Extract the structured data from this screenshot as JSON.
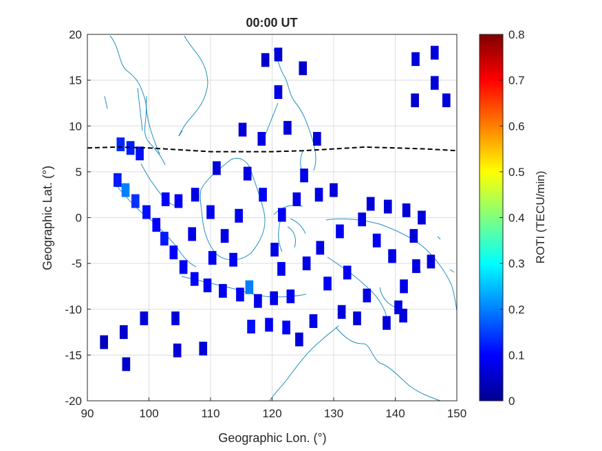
{
  "chart_data": {
    "type": "heatmap",
    "title": "00:00 UT",
    "xlabel": "Geographic Lon. (°)",
    "ylabel": "Geographic Lat. (°)",
    "xlim": [
      90,
      150
    ],
    "ylim": [
      -20,
      20
    ],
    "xticks": [
      90,
      100,
      110,
      120,
      130,
      140,
      150
    ],
    "yticks": [
      20,
      15,
      10,
      5,
      0,
      -5,
      -10,
      -15,
      -20
    ],
    "grid": true,
    "colorbar": {
      "label": "ROTI (TECU/min)",
      "range": [
        0,
        0.8
      ],
      "ticks": [
        0,
        0.1,
        0.2,
        0.3,
        0.4,
        0.5,
        0.6,
        0.7,
        0.8
      ],
      "colormap": "jet"
    },
    "magnetic_equator": {
      "style": "dashed",
      "color": "#000000",
      "lon": [
        90,
        95,
        100,
        105,
        110,
        115,
        120,
        125,
        130,
        135,
        140,
        145,
        150
      ],
      "lat": [
        7.6,
        7.7,
        7.6,
        7.4,
        7.2,
        7.2,
        7.2,
        7.3,
        7.5,
        7.7,
        7.6,
        7.5,
        7.3
      ]
    },
    "cells": [
      {
        "lon": 92.7,
        "lat": -13.6,
        "roti": 0.05
      },
      {
        "lon": 95.9,
        "lat": -12.5,
        "roti": 0.06
      },
      {
        "lon": 96.3,
        "lat": -16.0,
        "roti": 0.06
      },
      {
        "lon": 99.2,
        "lat": -11.0,
        "roti": 0.07
      },
      {
        "lon": 104.3,
        "lat": -11.0,
        "roti": 0.07
      },
      {
        "lon": 104.6,
        "lat": -14.5,
        "roti": 0.07
      },
      {
        "lon": 108.8,
        "lat": -14.3,
        "roti": 0.07
      },
      {
        "lon": 118.9,
        "lat": 17.2,
        "roti": 0.06
      },
      {
        "lon": 121.0,
        "lat": 17.8,
        "roti": 0.07
      },
      {
        "lon": 125.0,
        "lat": 16.3,
        "roti": 0.06
      },
      {
        "lon": 121.0,
        "lat": 13.7,
        "roti": 0.08
      },
      {
        "lon": 115.2,
        "lat": 9.6,
        "roti": 0.07
      },
      {
        "lon": 118.3,
        "lat": 8.6,
        "roti": 0.08
      },
      {
        "lon": 122.5,
        "lat": 9.8,
        "roti": 0.07
      },
      {
        "lon": 127.3,
        "lat": 8.6,
        "roti": 0.07
      },
      {
        "lon": 143.3,
        "lat": 17.3,
        "roti": 0.07
      },
      {
        "lon": 146.4,
        "lat": 18.0,
        "roti": 0.07
      },
      {
        "lon": 146.4,
        "lat": 14.7,
        "roti": 0.07
      },
      {
        "lon": 143.2,
        "lat": 12.8,
        "roti": 0.06
      },
      {
        "lon": 148.3,
        "lat": 12.8,
        "roti": 0.07
      },
      {
        "lon": 95.4,
        "lat": 8.0,
        "roti": 0.13
      },
      {
        "lon": 97.0,
        "lat": 7.6,
        "roti": 0.12
      },
      {
        "lon": 98.5,
        "lat": 7.0,
        "roti": 0.11
      },
      {
        "lon": 94.9,
        "lat": 4.1,
        "roti": 0.12
      },
      {
        "lon": 96.2,
        "lat": 3.0,
        "roti": 0.2
      },
      {
        "lon": 97.8,
        "lat": 1.8,
        "roti": 0.14
      },
      {
        "lon": 99.6,
        "lat": 0.6,
        "roti": 0.11
      },
      {
        "lon": 101.2,
        "lat": -0.8,
        "roti": 0.1
      },
      {
        "lon": 102.5,
        "lat": -2.3,
        "roti": 0.12
      },
      {
        "lon": 104.0,
        "lat": -3.8,
        "roti": 0.1
      },
      {
        "lon": 105.6,
        "lat": -5.4,
        "roti": 0.09
      },
      {
        "lon": 107.4,
        "lat": -6.7,
        "roti": 0.1
      },
      {
        "lon": 109.5,
        "lat": -7.4,
        "roti": 0.1
      },
      {
        "lon": 112.0,
        "lat": -8.0,
        "roti": 0.09
      },
      {
        "lon": 114.8,
        "lat": -8.4,
        "roti": 0.1
      },
      {
        "lon": 116.3,
        "lat": -7.6,
        "roti": 0.2
      },
      {
        "lon": 117.7,
        "lat": -9.1,
        "roti": 0.08
      },
      {
        "lon": 120.3,
        "lat": -8.8,
        "roti": 0.08
      },
      {
        "lon": 123.0,
        "lat": -8.6,
        "roti": 0.09
      },
      {
        "lon": 116.6,
        "lat": -11.9,
        "roti": 0.11
      },
      {
        "lon": 119.5,
        "lat": -11.7,
        "roti": 0.09
      },
      {
        "lon": 122.3,
        "lat": -12.0,
        "roti": 0.1
      },
      {
        "lon": 124.4,
        "lat": -13.3,
        "roti": 0.07
      },
      {
        "lon": 126.7,
        "lat": -11.3,
        "roti": 0.08
      },
      {
        "lon": 111.0,
        "lat": 5.4,
        "roti": 0.07
      },
      {
        "lon": 116.0,
        "lat": 4.8,
        "roti": 0.08
      },
      {
        "lon": 118.5,
        "lat": 2.5,
        "roti": 0.09
      },
      {
        "lon": 114.6,
        "lat": 0.2,
        "roti": 0.09
      },
      {
        "lon": 112.3,
        "lat": -2.0,
        "roti": 0.08
      },
      {
        "lon": 110.0,
        "lat": 0.6,
        "roti": 0.09
      },
      {
        "lon": 107.5,
        "lat": 2.5,
        "roti": 0.08
      },
      {
        "lon": 107.0,
        "lat": -1.8,
        "roti": 0.08
      },
      {
        "lon": 121.6,
        "lat": 0.3,
        "roti": 0.09
      },
      {
        "lon": 124.0,
        "lat": 2.0,
        "roti": 0.08
      },
      {
        "lon": 120.4,
        "lat": -3.5,
        "roti": 0.08
      },
      {
        "lon": 125.2,
        "lat": 4.6,
        "roti": 0.08
      },
      {
        "lon": 127.6,
        "lat": 2.5,
        "roti": 0.08
      },
      {
        "lon": 130.0,
        "lat": 3.0,
        "roti": 0.07
      },
      {
        "lon": 127.8,
        "lat": -3.3,
        "roti": 0.08
      },
      {
        "lon": 131.0,
        "lat": -1.5,
        "roti": 0.09
      },
      {
        "lon": 134.6,
        "lat": -0.2,
        "roti": 0.08
      },
      {
        "lon": 137.0,
        "lat": -2.5,
        "roti": 0.09
      },
      {
        "lon": 139.5,
        "lat": -4.2,
        "roti": 0.08
      },
      {
        "lon": 132.2,
        "lat": -6.0,
        "roti": 0.09
      },
      {
        "lon": 129.0,
        "lat": -7.2,
        "roti": 0.09
      },
      {
        "lon": 135.4,
        "lat": -8.5,
        "roti": 0.08
      },
      {
        "lon": 141.4,
        "lat": -7.5,
        "roti": 0.08
      },
      {
        "lon": 143.4,
        "lat": -5.3,
        "roti": 0.08
      },
      {
        "lon": 140.5,
        "lat": -9.8,
        "roti": 0.08
      },
      {
        "lon": 138.6,
        "lat": -11.5,
        "roti": 0.07
      },
      {
        "lon": 141.3,
        "lat": -10.7,
        "roti": 0.07
      },
      {
        "lon": 131.3,
        "lat": -10.3,
        "roti": 0.07
      },
      {
        "lon": 133.8,
        "lat": -11.0,
        "roti": 0.07
      },
      {
        "lon": 136.0,
        "lat": 1.5,
        "roti": 0.07
      },
      {
        "lon": 138.8,
        "lat": 1.2,
        "roti": 0.07
      },
      {
        "lon": 141.8,
        "lat": 0.8,
        "roti": 0.07
      },
      {
        "lon": 144.3,
        "lat": 0.0,
        "roti": 0.07
      },
      {
        "lon": 145.8,
        "lat": -4.8,
        "roti": 0.07
      },
      {
        "lon": 143.0,
        "lat": -2.0,
        "roti": 0.07
      },
      {
        "lon": 102.7,
        "lat": 2.0,
        "roti": 0.1
      },
      {
        "lon": 104.8,
        "lat": 1.8,
        "roti": 0.09
      },
      {
        "lon": 113.7,
        "lat": -4.6,
        "roti": 0.09
      },
      {
        "lon": 110.3,
        "lat": -4.4,
        "roti": 0.09
      },
      {
        "lon": 121.5,
        "lat": -5.6,
        "roti": 0.09
      },
      {
        "lon": 125.6,
        "lat": -5.0,
        "roti": 0.08
      }
    ]
  }
}
